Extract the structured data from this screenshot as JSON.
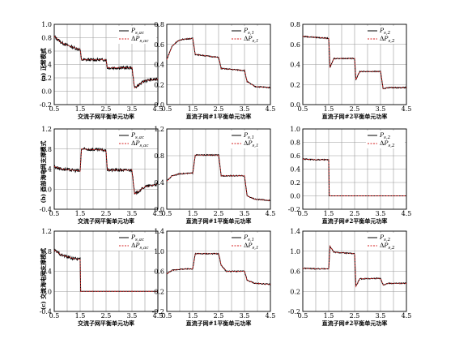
{
  "rows": [
    {
      "label": "(a) 正常模式"
    },
    {
      "label": "(b) 西部海电网支撑模式"
    },
    {
      "label": "(c) 交流海电网支撑模式"
    }
  ],
  "xlabels": [
    "交流子网平衡单元功率",
    "直流子网#1平衡单元功率",
    "直流子网#2平衡单元功率"
  ],
  "colors": {
    "measured": "#000000",
    "reference": "#d62020"
  },
  "chart_data": [
    {
      "type": "line",
      "panel": "a1",
      "xlim": [
        0.5,
        4.5
      ],
      "ylim": [
        -0.2,
        1.0
      ],
      "xticks": [
        0.5,
        1.5,
        2.5,
        3.5,
        4.5
      ],
      "yticks": [
        -0.2,
        0,
        0.2,
        0.4,
        0.6,
        0.8,
        1.0
      ],
      "series": [
        {
          "name": "P_s,ac",
          "x": [
            0.5,
            0.8,
            1.2,
            1.5,
            1.55,
            2.4,
            2.5,
            2.55,
            3.4,
            3.5,
            3.6,
            4.0,
            4.5
          ],
          "y": [
            0.82,
            0.72,
            0.66,
            0.62,
            0.47,
            0.47,
            0.47,
            0.35,
            0.35,
            0.35,
            0.05,
            0.16,
            0.18
          ]
        },
        {
          "name": "ΔP_s,ac",
          "x": [
            0.5,
            0.8,
            1.2,
            1.5,
            1.55,
            2.4,
            2.5,
            2.55,
            3.4,
            3.5,
            3.6,
            4.0,
            4.5
          ],
          "y": [
            0.82,
            0.72,
            0.66,
            0.62,
            0.47,
            0.47,
            0.47,
            0.35,
            0.35,
            0.35,
            0.05,
            0.16,
            0.18
          ]
        }
      ]
    },
    {
      "type": "line",
      "panel": "a2",
      "xlim": [
        0.5,
        4.5
      ],
      "ylim": [
        0,
        0.8
      ],
      "xticks": [
        0.5,
        1.5,
        2.5,
        3.5,
        4.5
      ],
      "yticks": [
        0,
        0.2,
        0.4,
        0.6,
        0.8
      ],
      "series": [
        {
          "name": "P_s,1",
          "x": [
            0.5,
            0.7,
            0.9,
            1.1,
            1.5,
            1.6,
            2.5,
            2.6,
            3.5,
            3.6,
            3.9,
            4.5
          ],
          "y": [
            0.45,
            0.58,
            0.63,
            0.65,
            0.66,
            0.5,
            0.47,
            0.36,
            0.34,
            0.23,
            0.18,
            0.17
          ]
        },
        {
          "name": "ΔP_s,1",
          "x": [
            0.5,
            0.7,
            0.9,
            1.1,
            1.5,
            1.6,
            2.5,
            2.6,
            3.5,
            3.6,
            3.9,
            4.5
          ],
          "y": [
            0.45,
            0.58,
            0.63,
            0.65,
            0.66,
            0.5,
            0.47,
            0.36,
            0.34,
            0.23,
            0.18,
            0.17
          ]
        }
      ]
    },
    {
      "type": "line",
      "panel": "a3",
      "xlim": [
        0.5,
        4.5
      ],
      "ylim": [
        0,
        0.8
      ],
      "xticks": [
        0.5,
        1.5,
        2.5,
        3.5,
        4.5
      ],
      "yticks": [
        0,
        0.2,
        0.4,
        0.6,
        0.8
      ],
      "series": [
        {
          "name": "P_s,2",
          "x": [
            0.5,
            1.0,
            1.5,
            1.55,
            1.7,
            2.5,
            2.55,
            2.7,
            3.5,
            3.6,
            3.8,
            4.5
          ],
          "y": [
            0.68,
            0.67,
            0.66,
            0.37,
            0.46,
            0.46,
            0.25,
            0.33,
            0.33,
            0.16,
            0.17,
            0.17
          ]
        },
        {
          "name": "ΔP_s,2",
          "x": [
            0.5,
            1.0,
            1.5,
            1.55,
            1.7,
            2.5,
            2.55,
            2.7,
            3.5,
            3.6,
            3.8,
            4.5
          ],
          "y": [
            0.68,
            0.67,
            0.66,
            0.37,
            0.46,
            0.46,
            0.25,
            0.33,
            0.33,
            0.16,
            0.17,
            0.17
          ]
        }
      ]
    },
    {
      "type": "line",
      "panel": "b1",
      "xlim": [
        0.5,
        4.5
      ],
      "ylim": [
        -0.4,
        1.2
      ],
      "xticks": [
        0.5,
        1.5,
        2.5,
        3.5,
        4.5
      ],
      "yticks": [
        -0.4,
        0,
        0.4,
        0.8,
        1.2
      ],
      "series": [
        {
          "name": "P_s,ac",
          "x": [
            0.5,
            0.8,
            1.2,
            1.5,
            1.55,
            2.4,
            2.5,
            2.55,
            3.4,
            3.5,
            3.6,
            4.0,
            4.5
          ],
          "y": [
            0.45,
            0.4,
            0.38,
            0.36,
            0.8,
            0.78,
            0.76,
            0.38,
            0.38,
            0.38,
            -0.1,
            0.05,
            0.1
          ]
        },
        {
          "name": "ΔP_s,ac",
          "x": [
            0.5,
            0.8,
            1.2,
            1.5,
            1.55,
            2.4,
            2.5,
            2.55,
            3.4,
            3.5,
            3.6,
            4.0,
            4.5
          ],
          "y": [
            0.45,
            0.4,
            0.38,
            0.36,
            0.8,
            0.78,
            0.76,
            0.38,
            0.38,
            0.38,
            -0.1,
            0.05,
            0.1
          ]
        }
      ]
    },
    {
      "type": "line",
      "panel": "b2",
      "xlim": [
        0.5,
        4.5
      ],
      "ylim": [
        0,
        1.2
      ],
      "xticks": [
        0.5,
        1.5,
        2.5,
        3.5,
        4.5
      ],
      "yticks": [
        0,
        0.4,
        0.8,
        1.2
      ],
      "series": [
        {
          "name": "P_s,1",
          "x": [
            0.5,
            0.7,
            1.0,
            1.5,
            1.6,
            2.5,
            2.6,
            3.5,
            3.6,
            3.9,
            4.5
          ],
          "y": [
            0.42,
            0.5,
            0.53,
            0.54,
            0.81,
            0.81,
            0.5,
            0.5,
            0.2,
            0.15,
            0.13
          ]
        },
        {
          "name": "ΔP_s,1",
          "x": [
            0.5,
            0.7,
            1.0,
            1.5,
            1.6,
            2.5,
            2.6,
            3.5,
            3.6,
            3.9,
            4.5
          ],
          "y": [
            0.42,
            0.5,
            0.53,
            0.54,
            0.81,
            0.81,
            0.5,
            0.5,
            0.2,
            0.15,
            0.13
          ]
        }
      ]
    },
    {
      "type": "line",
      "panel": "b3",
      "xlim": [
        0.5,
        4.5
      ],
      "ylim": [
        -0.2,
        1.0
      ],
      "xticks": [
        0.5,
        1.5,
        2.5,
        3.5,
        4.5
      ],
      "yticks": [
        -0.2,
        0,
        0.2,
        0.4,
        0.6,
        0.8,
        1.0
      ],
      "series": [
        {
          "name": "P_s,2",
          "x": [
            0.5,
            1.0,
            1.5,
            1.52,
            4.5
          ],
          "y": [
            0.55,
            0.54,
            0.54,
            0.0,
            0.0
          ]
        },
        {
          "name": "ΔP_s,2",
          "x": [
            0.5,
            1.0,
            1.5,
            1.52,
            4.5
          ],
          "y": [
            0.55,
            0.54,
            0.54,
            0.0,
            0.0
          ]
        }
      ]
    },
    {
      "type": "line",
      "panel": "c1",
      "xlim": [
        0.5,
        4.5
      ],
      "ylim": [
        -0.4,
        1.2
      ],
      "xticks": [
        0.5,
        1.5,
        2.5,
        3.5,
        4.5
      ],
      "yticks": [
        -0.4,
        0,
        0.4,
        0.8,
        1.2
      ],
      "series": [
        {
          "name": "P_s,ac",
          "x": [
            0.5,
            0.8,
            1.2,
            1.5,
            1.52,
            4.5
          ],
          "y": [
            0.82,
            0.72,
            0.66,
            0.64,
            0.0,
            0.0
          ]
        },
        {
          "name": "ΔP_s,ac",
          "x": [
            0.5,
            0.8,
            1.2,
            1.5,
            1.52,
            4.5
          ],
          "y": [
            0.82,
            0.72,
            0.66,
            0.64,
            0.0,
            0.0
          ]
        }
      ]
    },
    {
      "type": "line",
      "panel": "c2",
      "xlim": [
        0.5,
        4.5
      ],
      "ylim": [
        -0.2,
        1.4
      ],
      "xticks": [
        0.5,
        1.5,
        2.5,
        3.5,
        4.5
      ],
      "yticks": [
        -0.2,
        0.2,
        0.6,
        1.0,
        1.4
      ],
      "series": [
        {
          "name": "P_s,1",
          "x": [
            0.5,
            0.7,
            1.0,
            1.5,
            1.6,
            2.5,
            2.6,
            2.8,
            3.5,
            3.6,
            3.9,
            4.5
          ],
          "y": [
            0.55,
            0.62,
            0.64,
            0.65,
            0.95,
            0.95,
            0.72,
            0.6,
            0.6,
            0.42,
            0.36,
            0.34
          ]
        },
        {
          "name": "ΔP_s,1",
          "x": [
            0.5,
            0.7,
            1.0,
            1.5,
            1.6,
            2.5,
            2.6,
            2.8,
            3.5,
            3.6,
            3.9,
            4.5
          ],
          "y": [
            0.55,
            0.62,
            0.64,
            0.65,
            0.95,
            0.95,
            0.72,
            0.6,
            0.6,
            0.42,
            0.36,
            0.34
          ]
        }
      ]
    },
    {
      "type": "line",
      "panel": "c3",
      "xlim": [
        0.5,
        4.5
      ],
      "ylim": [
        -0.2,
        1.4
      ],
      "xticks": [
        0.5,
        1.5,
        2.5,
        3.5,
        4.5
      ],
      "yticks": [
        -0.2,
        0.2,
        0.6,
        1.0,
        1.4
      ],
      "series": [
        {
          "name": "P_s,2",
          "x": [
            0.5,
            1.0,
            1.5,
            1.55,
            1.7,
            2.5,
            2.55,
            2.7,
            3.5,
            3.6,
            3.8,
            4.5
          ],
          "y": [
            0.66,
            0.65,
            0.65,
            1.1,
            0.98,
            0.95,
            0.3,
            0.45,
            0.46,
            0.33,
            0.36,
            0.36
          ]
        },
        {
          "name": "ΔP_s,2",
          "x": [
            0.5,
            1.0,
            1.5,
            1.55,
            1.7,
            2.5,
            2.55,
            2.7,
            3.5,
            3.6,
            3.8,
            4.5
          ],
          "y": [
            0.66,
            0.65,
            0.65,
            1.1,
            0.98,
            0.95,
            0.3,
            0.45,
            0.46,
            0.33,
            0.36,
            0.36
          ]
        }
      ]
    }
  ]
}
